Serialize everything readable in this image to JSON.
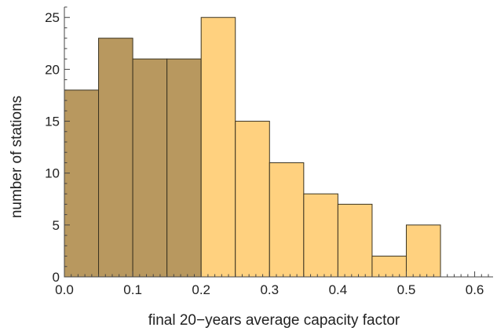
{
  "chart_data": {
    "type": "bar",
    "title": "",
    "xlabel": "final 20−years average capacity factor",
    "ylabel": "number of stations",
    "xlim": [
      0.0,
      0.62
    ],
    "ylim": [
      0,
      26
    ],
    "grid": false,
    "bin_width": 0.05,
    "bins": [
      {
        "start": 0.0,
        "end": 0.05,
        "value": 18,
        "group": "low"
      },
      {
        "start": 0.05,
        "end": 0.1,
        "value": 23,
        "group": "low"
      },
      {
        "start": 0.1,
        "end": 0.15,
        "value": 21,
        "group": "low"
      },
      {
        "start": 0.15,
        "end": 0.2,
        "value": 21,
        "group": "low"
      },
      {
        "start": 0.2,
        "end": 0.25,
        "value": 25,
        "group": "high"
      },
      {
        "start": 0.25,
        "end": 0.3,
        "value": 15,
        "group": "high"
      },
      {
        "start": 0.3,
        "end": 0.35,
        "value": 11,
        "group": "high"
      },
      {
        "start": 0.35,
        "end": 0.4,
        "value": 8,
        "group": "high"
      },
      {
        "start": 0.4,
        "end": 0.45,
        "value": 7,
        "group": "high"
      },
      {
        "start": 0.45,
        "end": 0.5,
        "value": 2,
        "group": "high"
      },
      {
        "start": 0.5,
        "end": 0.55,
        "value": 5,
        "group": "high"
      }
    ],
    "colors": {
      "low": "#b8985f",
      "high": "#ffd17f"
    },
    "x_ticks": [
      {
        "value": 0.0,
        "label": "0.0"
      },
      {
        "value": 0.1,
        "label": "0.1"
      },
      {
        "value": 0.2,
        "label": "0.2"
      },
      {
        "value": 0.3,
        "label": "0.3"
      },
      {
        "value": 0.4,
        "label": "0.4"
      },
      {
        "value": 0.5,
        "label": "0.5"
      },
      {
        "value": 0.6,
        "label": "0.6"
      }
    ],
    "y_ticks": [
      {
        "value": 0,
        "label": "0"
      },
      {
        "value": 5,
        "label": "5"
      },
      {
        "value": 10,
        "label": "10"
      },
      {
        "value": 15,
        "label": "15"
      },
      {
        "value": 20,
        "label": "20"
      },
      {
        "value": 25,
        "label": "25"
      }
    ]
  }
}
